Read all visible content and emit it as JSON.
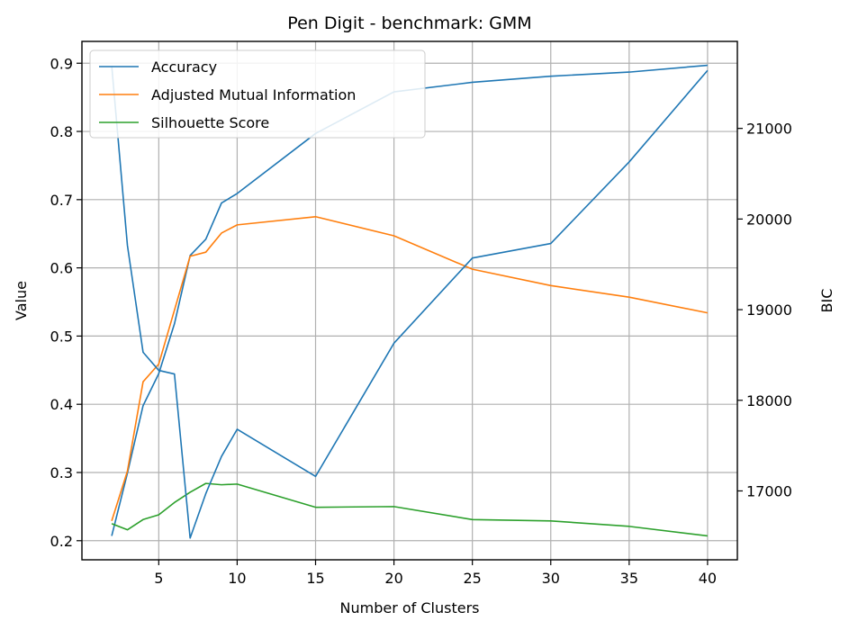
{
  "chart_data": {
    "type": "line",
    "title": "Pen Digit - benchmark: GMM",
    "xlabel": "Number of Clusters",
    "ylabel": "Value",
    "y2label": "BIC",
    "xlim": [
      0.1,
      41.9
    ],
    "ylim": [
      0.172,
      0.932
    ],
    "y2lim": [
      16240,
      21960
    ],
    "xticks": [
      5,
      10,
      15,
      20,
      25,
      30,
      35,
      40
    ],
    "yticks": [
      0.2,
      0.3,
      0.4,
      0.5,
      0.6,
      0.7,
      0.8,
      0.9
    ],
    "y2ticks": [
      17000,
      18000,
      19000,
      20000,
      21000
    ],
    "grid": true,
    "legend_position": "top-left",
    "x": [
      2,
      3,
      4,
      5,
      6,
      7,
      8,
      9,
      10,
      15,
      20,
      25,
      30,
      35,
      40
    ],
    "series": [
      {
        "name": "Accuracy",
        "axis": "left",
        "color": "#1f77b4",
        "values": [
          0.207,
          0.299,
          0.398,
          0.445,
          0.518,
          0.618,
          0.642,
          0.695,
          0.709,
          0.797,
          0.858,
          0.872,
          0.881,
          0.887,
          0.897
        ]
      },
      {
        "name": "Adjusted Mutual Information",
        "axis": "left",
        "color": "#ff7f0e",
        "values": [
          0.229,
          0.302,
          0.433,
          0.459,
          0.538,
          0.617,
          0.623,
          0.651,
          0.663,
          0.675,
          0.647,
          0.598,
          0.574,
          0.557,
          0.534
        ]
      },
      {
        "name": "Silhouette Score",
        "axis": "left",
        "color": "#2ca02c",
        "values": [
          0.225,
          0.216,
          0.231,
          0.238,
          0.256,
          0.271,
          0.284,
          0.282,
          0.283,
          0.249,
          0.25,
          0.231,
          0.229,
          0.221,
          0.207
        ]
      },
      {
        "axis": "right",
        "color": "#1f77b4",
        "values": [
          21690,
          19710,
          18530,
          18330,
          18290,
          16480,
          16970,
          17380,
          17680,
          17160,
          18630,
          19570,
          19730,
          20630,
          21640
        ]
      }
    ]
  }
}
